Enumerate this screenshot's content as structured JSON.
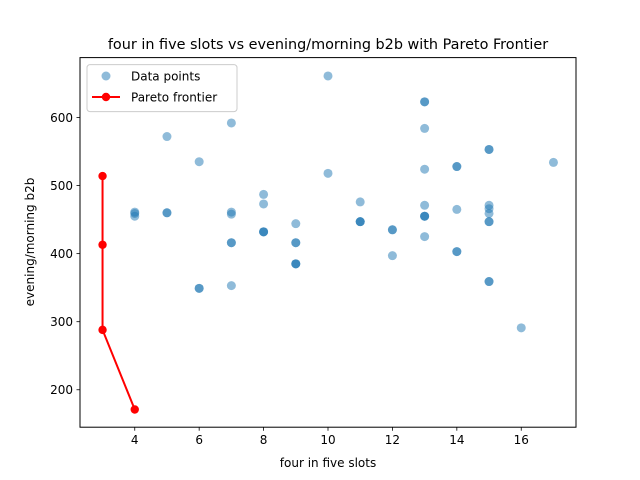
{
  "chart_data": {
    "type": "scatter",
    "title": "four in five slots vs evening/morning b2b with Pareto Frontier",
    "xlabel": "four in five slots",
    "ylabel": "evening/morning b2b",
    "xlim": [
      2.3,
      17.7
    ],
    "ylim": [
      145,
      688
    ],
    "xticks": [
      4,
      6,
      8,
      10,
      12,
      14,
      16
    ],
    "yticks": [
      200,
      300,
      400,
      500,
      600
    ],
    "grid": false,
    "legend_position": "upper-left",
    "series": [
      {
        "name": "Data points",
        "kind": "scatter",
        "color": "#1f77b4",
        "alpha": 0.5,
        "points": [
          {
            "x": 4,
            "y": 459
          },
          {
            "x": 4,
            "y": 455
          },
          {
            "x": 4,
            "y": 461
          },
          {
            "x": 5,
            "y": 572
          },
          {
            "x": 5,
            "y": 460
          },
          {
            "x": 5,
            "y": 460
          },
          {
            "x": 6,
            "y": 535
          },
          {
            "x": 6,
            "y": 349
          },
          {
            "x": 6,
            "y": 349
          },
          {
            "x": 7,
            "y": 592
          },
          {
            "x": 7,
            "y": 461
          },
          {
            "x": 7,
            "y": 458
          },
          {
            "x": 7,
            "y": 416
          },
          {
            "x": 7,
            "y": 416
          },
          {
            "x": 7,
            "y": 353
          },
          {
            "x": 8,
            "y": 487
          },
          {
            "x": 8,
            "y": 473
          },
          {
            "x": 8,
            "y": 432
          },
          {
            "x": 8,
            "y": 432
          },
          {
            "x": 8,
            "y": 432
          },
          {
            "x": 9,
            "y": 444
          },
          {
            "x": 9,
            "y": 416
          },
          {
            "x": 9,
            "y": 416
          },
          {
            "x": 9,
            "y": 385
          },
          {
            "x": 9,
            "y": 385
          },
          {
            "x": 9,
            "y": 385
          },
          {
            "x": 10,
            "y": 661
          },
          {
            "x": 10,
            "y": 518
          },
          {
            "x": 11,
            "y": 476
          },
          {
            "x": 11,
            "y": 447
          },
          {
            "x": 11,
            "y": 447
          },
          {
            "x": 11,
            "y": 447
          },
          {
            "x": 12,
            "y": 435
          },
          {
            "x": 12,
            "y": 435
          },
          {
            "x": 12,
            "y": 397
          },
          {
            "x": 13,
            "y": 623
          },
          {
            "x": 13,
            "y": 623
          },
          {
            "x": 13,
            "y": 584
          },
          {
            "x": 13,
            "y": 524
          },
          {
            "x": 13,
            "y": 471
          },
          {
            "x": 13,
            "y": 455
          },
          {
            "x": 13,
            "y": 455
          },
          {
            "x": 13,
            "y": 455
          },
          {
            "x": 13,
            "y": 425
          },
          {
            "x": 14,
            "y": 528
          },
          {
            "x": 14,
            "y": 528
          },
          {
            "x": 14,
            "y": 465
          },
          {
            "x": 14,
            "y": 403
          },
          {
            "x": 14,
            "y": 403
          },
          {
            "x": 15,
            "y": 553
          },
          {
            "x": 15,
            "y": 553
          },
          {
            "x": 15,
            "y": 471
          },
          {
            "x": 15,
            "y": 466
          },
          {
            "x": 15,
            "y": 459
          },
          {
            "x": 15,
            "y": 447
          },
          {
            "x": 15,
            "y": 447
          },
          {
            "x": 15,
            "y": 359
          },
          {
            "x": 15,
            "y": 359
          },
          {
            "x": 16,
            "y": 291
          },
          {
            "x": 17,
            "y": 534
          }
        ]
      },
      {
        "name": "Pareto frontier",
        "kind": "line",
        "color": "#ff0000",
        "points": [
          {
            "x": 3,
            "y": 514
          },
          {
            "x": 3,
            "y": 413
          },
          {
            "x": 3,
            "y": 288
          },
          {
            "x": 4,
            "y": 171
          }
        ]
      }
    ]
  }
}
